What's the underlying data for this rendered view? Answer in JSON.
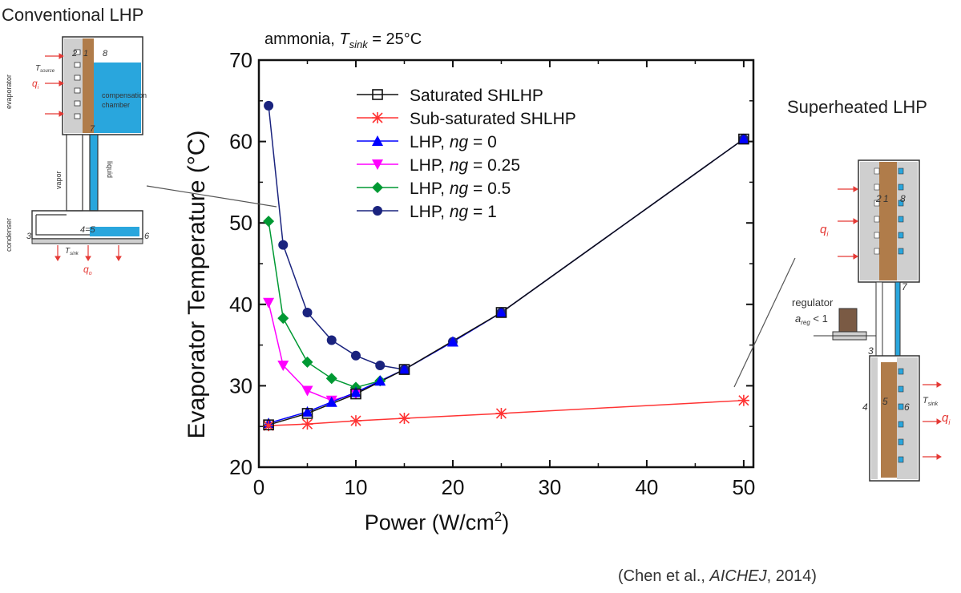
{
  "headings": {
    "conventional": "Conventional LHP",
    "superheated": "Superheated LHP"
  },
  "citation": {
    "prefix": "(Chen et al., ",
    "journal": "AICHEJ",
    "suffix": ", 2014)"
  },
  "chart_title": {
    "prefix": "ammonia, ",
    "var": "T",
    "sub": "sink",
    "suffix": " = 25°C"
  },
  "conventional_diagram": {
    "evaporator": "evaporator",
    "compensation_chamber_1": "compensation",
    "compensation_chamber_2": "chamber",
    "vapor": "vapor",
    "liquid": "liquid",
    "condenser": "condenser",
    "T_sink": "T",
    "T_sink_sub": "sink",
    "T_source": "T",
    "T_source_sub": "source",
    "q_in": "q",
    "q_in_sub": "i",
    "q_out": "q",
    "q_out_sub": "o",
    "n2": "2",
    "n1": "1",
    "n8": "8",
    "n7": "7",
    "n3": "3",
    "n45": "4=5",
    "n6": "6"
  },
  "superheated_diagram": {
    "regulator": "regulator",
    "a_reg_var": "a",
    "a_reg_sub": "reg",
    "a_reg_suffix": " < 1",
    "T_sink": "T",
    "T_sink_sub": "sink",
    "q_in": "q",
    "q_in_sub": "i",
    "q_out": "q",
    "q_out_sub": "i",
    "n2": "2",
    "n1": "1",
    "n8": "8",
    "n7": "7",
    "n3": "3",
    "n4": "4",
    "n5": "5",
    "n6": "6"
  },
  "colors": {
    "saturated": "#111111",
    "subsaturated": "#ff3333",
    "ng0": "#0000ff",
    "ng025": "#ff00ff",
    "ng05": "#009933",
    "ng1": "#1a237e",
    "liquid_blue": "#29a6dd",
    "wick_brown": "#b07c4a",
    "casing_gray": "#cfcfcf"
  },
  "chart_data": {
    "type": "line",
    "xlabel": "Power (W/cm",
    "xlabel_sup": "2",
    "xlabel_end": ")",
    "ylabel": "Evaporator Temperature (°C)",
    "xlim": [
      0,
      51
    ],
    "ylim": [
      20,
      70
    ],
    "xticks": [
      0,
      10,
      20,
      30,
      40,
      50
    ],
    "yticks": [
      20,
      30,
      40,
      50,
      60,
      70
    ],
    "grid": false,
    "legend_position": "top-left inside",
    "series": [
      {
        "name": "Saturated SHLHP",
        "label_prefix": "Saturated SHLHP",
        "label_italic": "",
        "label_suffix": "",
        "color": "#111111",
        "marker": "open-square",
        "x": [
          1,
          5,
          10,
          15,
          25,
          50
        ],
        "y": [
          25.2,
          26.6,
          29.0,
          32.0,
          39.0,
          60.3
        ]
      },
      {
        "name": "Sub-saturated SHLHP",
        "label_prefix": "Sub-saturated SHLHP",
        "label_italic": "",
        "label_suffix": "",
        "color": "#ff3333",
        "marker": "asterisk",
        "x": [
          1,
          5,
          10,
          15,
          25,
          50
        ],
        "y": [
          25.1,
          25.3,
          25.7,
          26.0,
          26.6,
          28.2
        ]
      },
      {
        "name": "LHP, ng = 0",
        "label_prefix": "LHP, ",
        "label_italic": "ng",
        "label_suffix": " = 0",
        "color": "#0000ff",
        "marker": "triangle-up",
        "x": [
          1,
          5,
          7.5,
          10,
          12.5,
          15,
          20,
          25,
          50
        ],
        "y": [
          25.4,
          26.8,
          28.0,
          29.2,
          30.6,
          32.0,
          35.4,
          39.0,
          60.3
        ]
      },
      {
        "name": "LHP, ng = 0.25",
        "label_prefix": "LHP, ",
        "label_italic": "ng",
        "label_suffix": " = 0.25",
        "color": "#ff00ff",
        "marker": "triangle-down",
        "x": [
          1,
          2.5,
          5,
          7.5,
          10
        ],
        "y": [
          40.2,
          32.5,
          29.4,
          28.2,
          29.0
        ]
      },
      {
        "name": "LHP, ng = 0.5",
        "label_prefix": "LHP, ",
        "label_italic": "ng",
        "label_suffix": " = 0.5",
        "color": "#009933",
        "marker": "diamond",
        "x": [
          1,
          2.5,
          5,
          7.5,
          10,
          12.5
        ],
        "y": [
          50.2,
          38.3,
          32.9,
          30.9,
          29.8,
          30.6
        ]
      },
      {
        "name": "LHP, ng = 1",
        "label_prefix": "LHP, ",
        "label_italic": "ng",
        "label_suffix": " = 1",
        "color": "#1a237e",
        "marker": "circle",
        "x": [
          1,
          2.5,
          5,
          7.5,
          10,
          12.5,
          15,
          20,
          25,
          50
        ],
        "y": [
          64.4,
          47.3,
          39.0,
          35.6,
          33.7,
          32.5,
          32.0,
          35.4,
          39.0,
          60.3
        ]
      }
    ]
  }
}
